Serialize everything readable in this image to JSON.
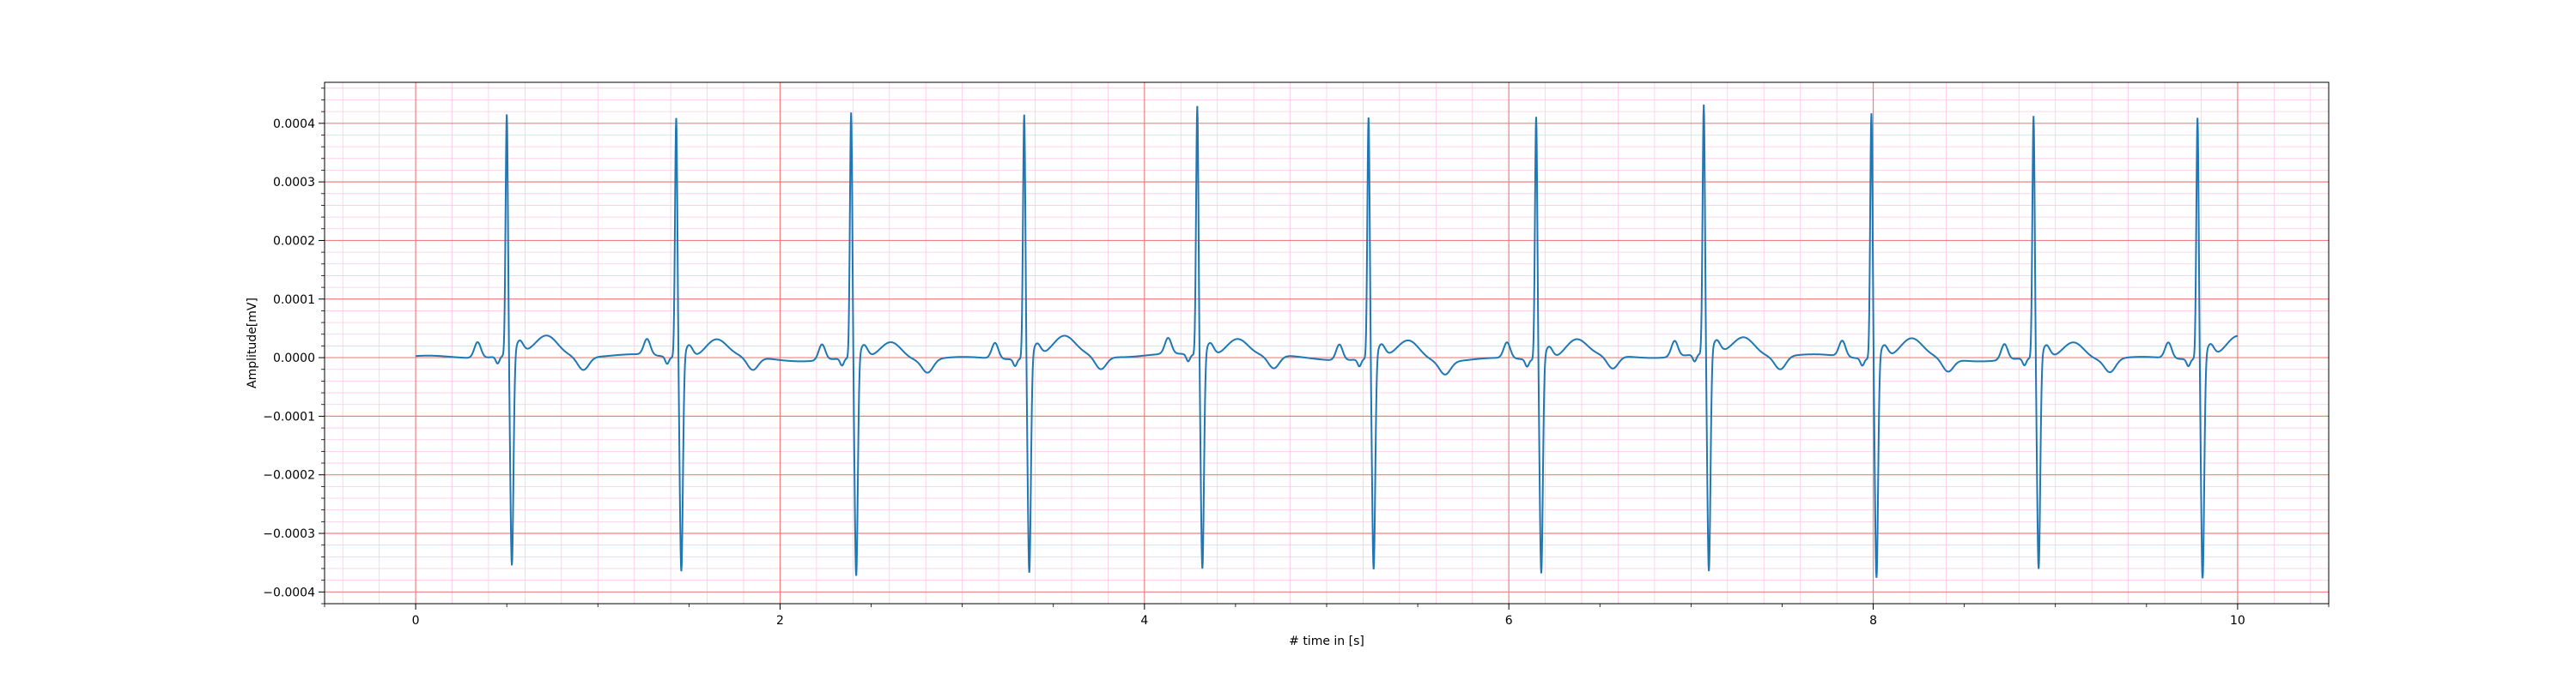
{
  "chart_data": {
    "type": "line",
    "title": "",
    "xlabel": "# time in [s]",
    "ylabel": "Amplitude[mV]",
    "xlim": [
      -0.5,
      10.5
    ],
    "ylim": [
      -0.00042,
      0.00047
    ],
    "xticks": [
      0,
      2,
      4,
      6,
      8,
      10
    ],
    "xtick_labels": [
      "0",
      "2",
      "4",
      "6",
      "8",
      "10"
    ],
    "yticks": [
      -0.0004,
      -0.0003,
      -0.0002,
      -0.0001,
      0.0,
      0.0001,
      0.0002,
      0.0003,
      0.0004
    ],
    "ytick_labels": [
      "−0.0004",
      "−0.0003",
      "−0.0002",
      "−0.0001",
      "0.0000",
      "0.0001",
      "0.0002",
      "0.0003",
      "0.0004"
    ],
    "grid": {
      "major": true,
      "minor": true,
      "major_color": "#f08080",
      "minor_color": "#ffc8e6"
    },
    "line_color": "#1f77b4",
    "series": [
      {
        "x_start": 0,
        "x_end": 10,
        "baseline": 0.0,
        "r_peak_times": [
          0.5,
          1.43,
          2.39,
          3.34,
          4.29,
          5.23,
          6.15,
          7.07,
          7.99,
          8.88,
          9.78
        ],
        "r_peak_values": [
          0.000413,
          0.000411,
          0.000421,
          0.000418,
          0.000427,
          0.000413,
          0.000417,
          0.000427,
          0.000421,
          0.000415,
          0.000413
        ],
        "s_trough_values": [
          -0.000362,
          -0.000366,
          -0.000374,
          -0.000369,
          -0.000366,
          -0.000363,
          -0.000366,
          -0.000374,
          -0.000376,
          -0.000362,
          -0.000378
        ],
        "p_wave_amplitude": 2.7e-05,
        "t_wave_amplitude": 3.2e-05
      }
    ]
  }
}
